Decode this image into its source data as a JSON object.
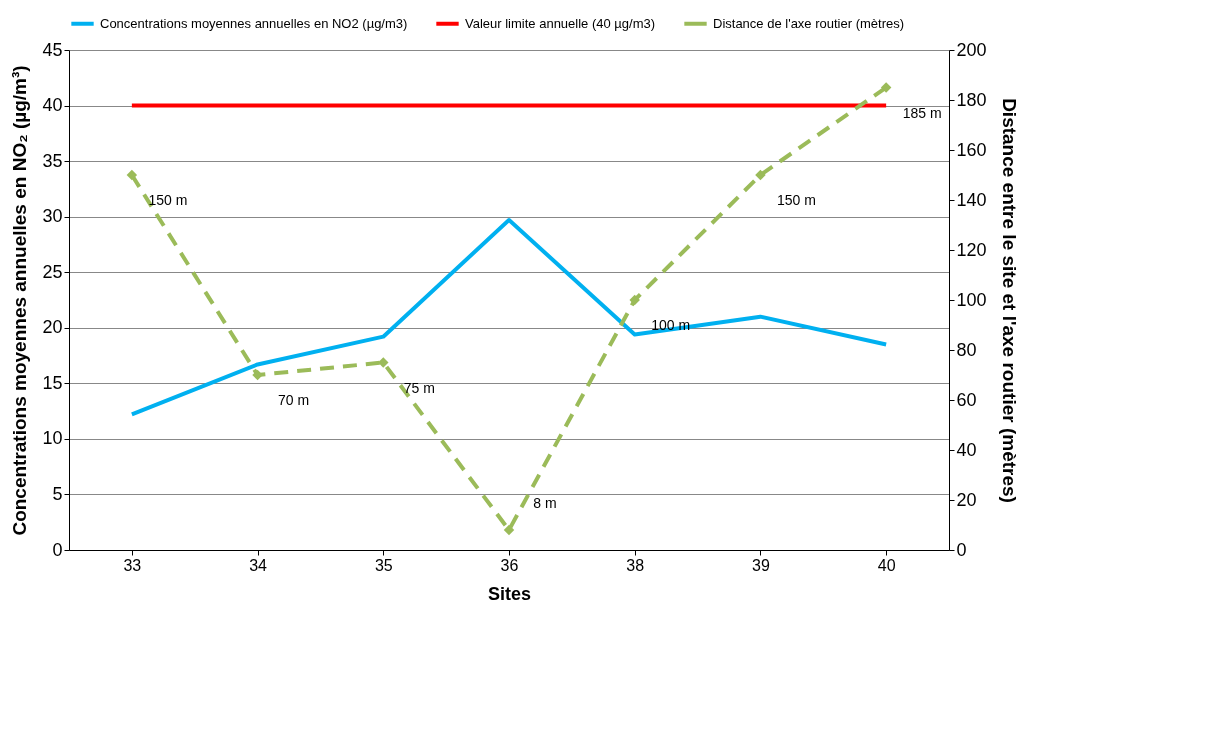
{
  "chart_data": {
    "type": "line",
    "xlabel": "Sites",
    "ylabel": "Concentrations moyennes annuelles en NO₂ (µg/m³)",
    "y2label": "Distance entre le site et l'axe routier (mètres)",
    "categories": [
      "33",
      "34",
      "35",
      "36",
      "38",
      "39",
      "40"
    ],
    "series": [
      {
        "name": "Concentrations moyennes annuelles en NO2 (µg/m3)",
        "color": "#00b0f0",
        "line_style": "solid",
        "marker": "none",
        "values": [
          12.2,
          16.7,
          19.2,
          29.7,
          19.4,
          21.0,
          18.5
        ]
      },
      {
        "name": "Valeur limite annuelle (40 µg/m3)",
        "color": "#ff0000",
        "line_style": "solid",
        "marker": "none",
        "values": [
          40,
          40,
          40,
          40,
          40,
          40,
          40
        ]
      },
      {
        "name": "Distance de l'axe routier (mètres)",
        "color": "#9bbb59",
        "axis": "y2",
        "line_style": "dashed",
        "marker": "diamond",
        "values": [
          150,
          70,
          75,
          8,
          100,
          150,
          185
        ],
        "value_labels": [
          "150 m",
          "70 m",
          "75 m",
          "8 m",
          "100 m",
          "150 m",
          "185 m"
        ]
      }
    ],
    "ylim": [
      0,
      45
    ],
    "yticks": [
      0,
      5,
      10,
      15,
      20,
      25,
      30,
      35,
      40,
      45
    ],
    "y2lim": [
      0,
      200
    ],
    "y2ticks": [
      0,
      20,
      40,
      60,
      80,
      100,
      120,
      140,
      160,
      180,
      200
    ],
    "grid": "y",
    "legend": "top"
  }
}
